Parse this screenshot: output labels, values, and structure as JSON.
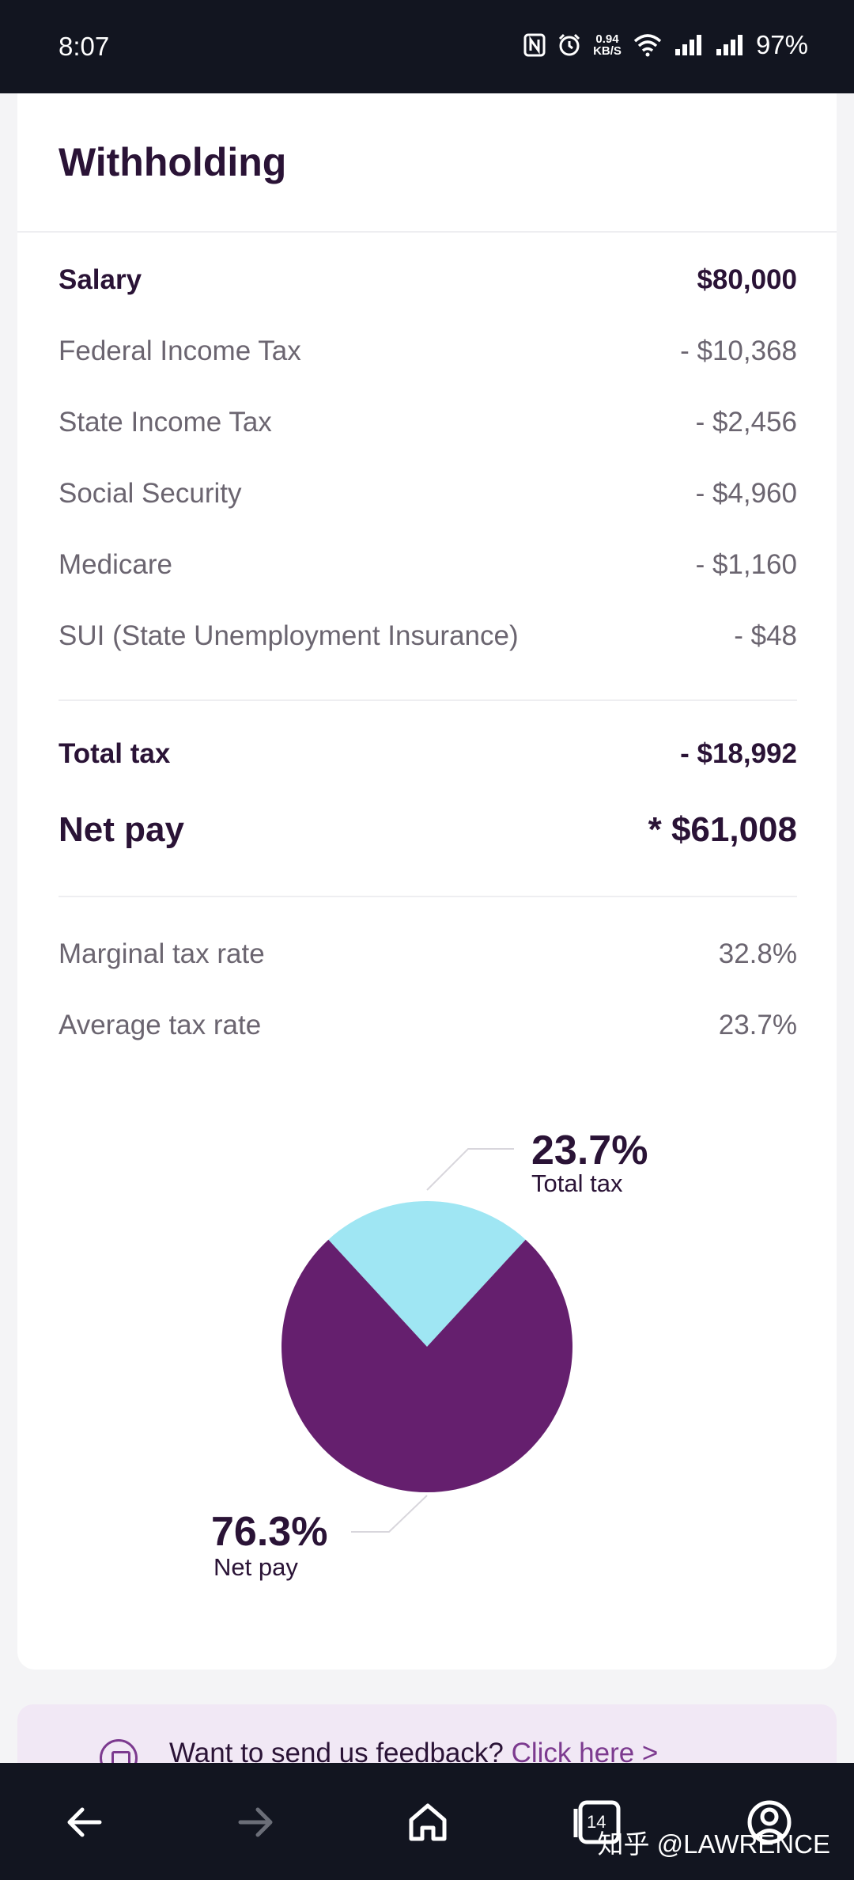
{
  "status_bar": {
    "time": "8:07",
    "net_speed_value": "0.94",
    "net_speed_unit": "KB/S",
    "battery": "97%"
  },
  "withholding": {
    "title": "Withholding",
    "salary": {
      "label": "Salary",
      "value": "$80,000"
    },
    "taxes": [
      {
        "label": "Federal Income Tax",
        "value": "- $10,368"
      },
      {
        "label": "State Income Tax",
        "value": "- $2,456"
      },
      {
        "label": "Social Security",
        "value": "- $4,960"
      },
      {
        "label": "Medicare",
        "value": "- $1,160"
      },
      {
        "label": "SUI (State Unemployment Insurance)",
        "value": "- $48"
      }
    ],
    "total_tax": {
      "label": "Total tax",
      "value": "- $18,992"
    },
    "net_pay": {
      "label": "Net pay",
      "value": "* $61,008"
    },
    "rates": [
      {
        "label": "Marginal tax rate",
        "value": "32.8%"
      },
      {
        "label": "Average tax rate",
        "value": "23.7%"
      }
    ]
  },
  "chart_data": {
    "type": "pie",
    "slices": [
      {
        "label": "Total tax",
        "value": 23.7,
        "display": "23.7%",
        "color": "#9fe6f3"
      },
      {
        "label": "Net pay",
        "value": 76.3,
        "display": "76.3%",
        "color": "#651f6e"
      }
    ]
  },
  "feedback": {
    "text": "Want to send us feedback?",
    "link": "Click here >"
  },
  "bottom_nav": {
    "tab_count": "14",
    "watermark": "知乎 @LAWRENCE"
  },
  "colors": {
    "brand_purple": "#651f6e",
    "tax_cyan": "#9fe6f3",
    "text_dark": "#2a1336",
    "text_muted": "#6b6570",
    "link_purple": "#7c3a8f"
  }
}
